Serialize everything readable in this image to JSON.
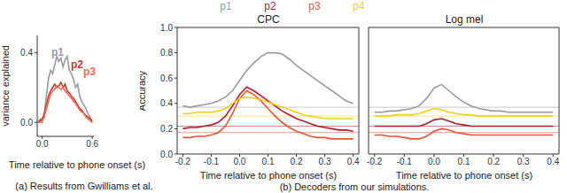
{
  "chart_data": [
    {
      "type": "line",
      "caption": "(a) Results from Gwilliams et al.",
      "x_label": "Time relative to phone onset (s)",
      "y_label": "variance explained",
      "x": [
        -0.05,
        -0.025,
        0,
        0.025,
        0.05,
        0.075,
        0.1,
        0.125,
        0.15,
        0.175,
        0.2,
        0.225,
        0.25,
        0.275,
        0.3,
        0.325,
        0.35,
        0.375,
        0.4,
        0.425,
        0.45,
        0.475,
        0.5,
        0.525,
        0.55,
        0.575,
        0.6
      ],
      "xlim": [
        -0.06,
        0.62
      ],
      "ylim": [
        -0.08,
        0.5
      ],
      "xticks": [
        {
          "value": 0,
          "label": "0.0"
        },
        0.6
      ],
      "yticks": [
        {
          "value": 0,
          "label": "0.0"
        },
        0.4
      ],
      "series": [
        {
          "name": "p1",
          "color": "#9a9a9a",
          "values": [
            0.0,
            0.02,
            0.0,
            0.05,
            0.15,
            0.25,
            0.3,
            0.28,
            0.33,
            0.38,
            0.35,
            0.37,
            0.32,
            0.36,
            0.38,
            0.3,
            0.28,
            0.25,
            0.2,
            0.22,
            0.15,
            0.12,
            0.1,
            0.08,
            0.05,
            0.03,
            0.0
          ]
        },
        {
          "name": "p2",
          "color": "#c8382e",
          "values": [
            0.0,
            0.01,
            0.02,
            0.05,
            0.1,
            0.15,
            0.18,
            0.2,
            0.22,
            0.2,
            0.21,
            0.23,
            0.2,
            0.22,
            0.18,
            0.17,
            0.15,
            0.14,
            0.12,
            0.1,
            0.08,
            0.07,
            0.05,
            0.04,
            0.03,
            0.02,
            0.01
          ]
        },
        {
          "name": "p3",
          "color": "#f26b4f",
          "values": [
            0.0,
            0.0,
            0.01,
            0.03,
            0.08,
            0.12,
            0.16,
            0.18,
            0.19,
            0.21,
            0.2,
            0.19,
            0.2,
            0.18,
            0.17,
            0.15,
            0.14,
            0.12,
            0.11,
            0.09,
            0.07,
            0.06,
            0.05,
            0.03,
            0.02,
            0.01,
            0.0
          ]
        }
      ]
    },
    {
      "type": "line",
      "title": "CPC",
      "caption": "(b) Decoders from our simulations.",
      "x_label": "Time relative to phone onset (s)",
      "y_label": "Accuracy",
      "x": [
        -0.2,
        -0.175,
        -0.15,
        -0.125,
        -0.1,
        -0.075,
        -0.05,
        -0.025,
        0,
        0.025,
        0.05,
        0.075,
        0.1,
        0.125,
        0.15,
        0.175,
        0.2,
        0.225,
        0.25,
        0.275,
        0.3,
        0.325,
        0.35,
        0.375,
        0.4
      ],
      "xlim": [
        -0.22,
        0.42
      ],
      "ylim": [
        0,
        1
      ],
      "xticks": [
        -0.2,
        -0.1,
        {
          "value": 0,
          "label": "0.0"
        },
        0.1,
        0.2,
        0.3,
        0.4
      ],
      "yticks": [
        {
          "value": 0,
          "label": "0.0"
        },
        0.2,
        0.4,
        0.6,
        0.8,
        {
          "value": 1,
          "label": "1.0"
        }
      ],
      "series": [
        {
          "name": "p1",
          "color": "#9a9a9a",
          "chance": 0.37,
          "values": [
            0.38,
            0.37,
            0.38,
            0.39,
            0.4,
            0.42,
            0.45,
            0.5,
            0.58,
            0.66,
            0.72,
            0.77,
            0.8,
            0.8,
            0.79,
            0.75,
            0.7,
            0.66,
            0.62,
            0.58,
            0.54,
            0.5,
            0.46,
            0.42,
            0.4
          ]
        },
        {
          "name": "p2",
          "color": "#b3192b",
          "chance": 0.22,
          "values": [
            0.2,
            0.21,
            0.21,
            0.22,
            0.23,
            0.25,
            0.3,
            0.38,
            0.47,
            0.53,
            0.5,
            0.46,
            0.42,
            0.38,
            0.34,
            0.31,
            0.28,
            0.26,
            0.24,
            0.22,
            0.21,
            0.2,
            0.19,
            0.19,
            0.18
          ]
        },
        {
          "name": "p3",
          "color": "#ec5330",
          "chance": 0.17,
          "values": [
            0.13,
            0.13,
            0.14,
            0.14,
            0.15,
            0.17,
            0.22,
            0.32,
            0.44,
            0.5,
            0.47,
            0.42,
            0.36,
            0.3,
            0.25,
            0.21,
            0.18,
            0.16,
            0.14,
            0.13,
            0.13,
            0.12,
            0.12,
            0.12,
            0.12
          ]
        },
        {
          "name": "p4",
          "color": "#f2cf1d",
          "chance": 0.3,
          "values": [
            0.32,
            0.32,
            0.33,
            0.33,
            0.33,
            0.34,
            0.36,
            0.4,
            0.44,
            0.45,
            0.44,
            0.43,
            0.41,
            0.39,
            0.37,
            0.35,
            0.33,
            0.31,
            0.3,
            0.29,
            0.28,
            0.28,
            0.28,
            0.28,
            0.28
          ]
        }
      ]
    },
    {
      "type": "line",
      "title": "Log mel",
      "x_label": "Time relative to phone onset (s)",
      "tick_labels": "x",
      "x": [
        -0.2,
        -0.175,
        -0.15,
        -0.125,
        -0.1,
        -0.075,
        -0.05,
        -0.025,
        0,
        0.025,
        0.05,
        0.075,
        0.1,
        0.125,
        0.15,
        0.175,
        0.2,
        0.225,
        0.25,
        0.275,
        0.3,
        0.325,
        0.35,
        0.375,
        0.4
      ],
      "xlim": [
        -0.22,
        0.42
      ],
      "ylim": [
        0,
        1
      ],
      "xticks": [
        -0.2,
        -0.1,
        {
          "value": 0,
          "label": "0.0"
        },
        0.1,
        0.2,
        0.3,
        0.4
      ],
      "yticks": [
        {
          "value": 0,
          "label": "0.0"
        },
        0.2,
        0.4,
        0.6,
        0.8,
        {
          "value": 1,
          "label": "1.0"
        }
      ],
      "series": [
        {
          "name": "p1",
          "color": "#9a9a9a",
          "chance": 0.37,
          "values": [
            0.33,
            0.33,
            0.34,
            0.34,
            0.35,
            0.36,
            0.38,
            0.44,
            0.52,
            0.55,
            0.5,
            0.45,
            0.41,
            0.38,
            0.36,
            0.35,
            0.34,
            0.34,
            0.33,
            0.33,
            0.33,
            0.33,
            0.33,
            0.33,
            0.33
          ]
        },
        {
          "name": "p2",
          "color": "#b3192b",
          "chance": 0.22,
          "values": [
            0.22,
            0.22,
            0.22,
            0.22,
            0.22,
            0.22,
            0.22,
            0.24,
            0.27,
            0.28,
            0.26,
            0.24,
            0.23,
            0.22,
            0.22,
            0.22,
            0.22,
            0.22,
            0.22,
            0.22,
            0.22,
            0.22,
            0.22,
            0.22,
            0.22
          ]
        },
        {
          "name": "p3",
          "color": "#ec5330",
          "chance": 0.17,
          "values": [
            0.15,
            0.15,
            0.14,
            0.14,
            0.13,
            0.12,
            0.12,
            0.14,
            0.18,
            0.2,
            0.19,
            0.17,
            0.16,
            0.15,
            0.15,
            0.15,
            0.15,
            0.15,
            0.15,
            0.15,
            0.15,
            0.15,
            0.15,
            0.15,
            0.15
          ]
        },
        {
          "name": "p4",
          "color": "#f2cf1d",
          "chance": 0.3,
          "values": [
            0.3,
            0.3,
            0.3,
            0.31,
            0.31,
            0.31,
            0.32,
            0.34,
            0.36,
            0.35,
            0.33,
            0.32,
            0.31,
            0.31,
            0.3,
            0.3,
            0.3,
            0.3,
            0.3,
            0.3,
            0.3,
            0.3,
            0.3,
            0.3,
            0.3
          ]
        }
      ]
    }
  ]
}
